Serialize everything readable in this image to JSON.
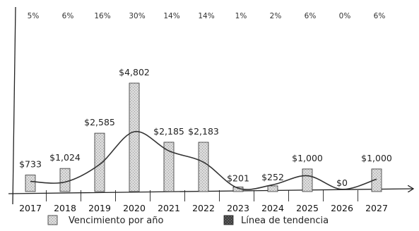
{
  "chart_data": {
    "type": "bar",
    "categories": [
      "2017",
      "2018",
      "2019",
      "2020",
      "2021",
      "2022",
      "2023",
      "2024",
      "2025",
      "2026",
      "2027"
    ],
    "values": [
      733,
      1024,
      2585,
      4802,
      2185,
      2183,
      201,
      252,
      1000,
      0,
      1000
    ],
    "value_labels": [
      "$733",
      "$1,024",
      "$2,585",
      "$4,802",
      "$2,185",
      "$2,183",
      "$201",
      "$252",
      "$1,000",
      "$0",
      "$1,000"
    ],
    "percent_labels": [
      "5%",
      "6%",
      "16%",
      "30%",
      "14%",
      "14%",
      "1%",
      "2%",
      "6%",
      "0%",
      "6%"
    ],
    "trend_values": [
      450,
      420,
      1200,
      2650,
      1800,
      1300,
      150,
      300,
      700,
      100,
      550
    ],
    "series": [
      {
        "name": "Vencimiento por año"
      },
      {
        "name": "Línea de tendencia"
      }
    ],
    "ylim": [
      0,
      5200
    ],
    "grid": false,
    "legend_position": "bottom",
    "colors": {
      "bar_fill": "#d9d9d9",
      "bar_stroke": "#333333",
      "trend": "#333333"
    }
  }
}
